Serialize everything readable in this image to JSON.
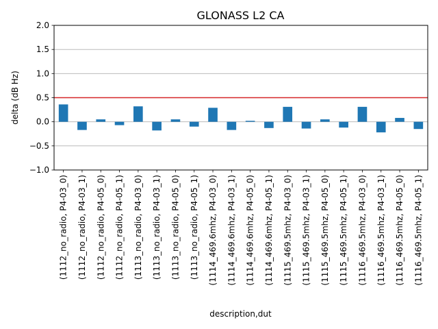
{
  "chart_data": {
    "type": "bar",
    "title": "GLONASS L2 CA",
    "xlabel": "description,dut",
    "ylabel": "delta (dB Hz)",
    "ylim": [
      -1.0,
      2.0
    ],
    "yticks": [
      -1.0,
      -0.5,
      0.0,
      0.5,
      1.0,
      1.5,
      2.0
    ],
    "ytick_labels": [
      "−1.0",
      "−0.5",
      "0.0",
      "0.5",
      "1.0",
      "1.5",
      "2.0"
    ],
    "grid": "horizontal",
    "reference_line": {
      "y": 0.5,
      "color": "#d62728"
    },
    "bar_color": "#1f77b4",
    "categories": [
      "(1112_no_radio, P4-03_0)",
      "(1112_no_radio, P4-03_1)",
      "(1112_no_radio, P4-05_0)",
      "(1112_no_radio, P4-05_1)",
      "(1113_no_radio, P4-03_0)",
      "(1113_no_radio, P4-03_1)",
      "(1113_no_radio, P4-05_0)",
      "(1113_no_radio, P4-05_1)",
      "(1114_469.6mhz, P4-03_0)",
      "(1114_469.6mhz, P4-03_1)",
      "(1114_469.6mhz, P4-05_0)",
      "(1114_469.6mhz, P4-05_1)",
      "(1115_469.5mhz, P4-03_0)",
      "(1115_469.5mhz, P4-03_1)",
      "(1115_469.5mhz, P4-05_0)",
      "(1115_469.5mhz, P4-05_1)",
      "(1116_469.5mhz, P4-03_0)",
      "(1116_469.5mhz, P4-03_1)",
      "(1116_469.5mhz, P4-05_0)",
      "(1116_469.5mhz, P4-05_1)"
    ],
    "values": [
      0.36,
      -0.17,
      0.05,
      -0.07,
      0.32,
      -0.18,
      0.05,
      -0.1,
      0.29,
      -0.17,
      0.02,
      -0.13,
      0.31,
      -0.14,
      0.05,
      -0.12,
      0.31,
      -0.22,
      0.08,
      -0.15
    ]
  }
}
